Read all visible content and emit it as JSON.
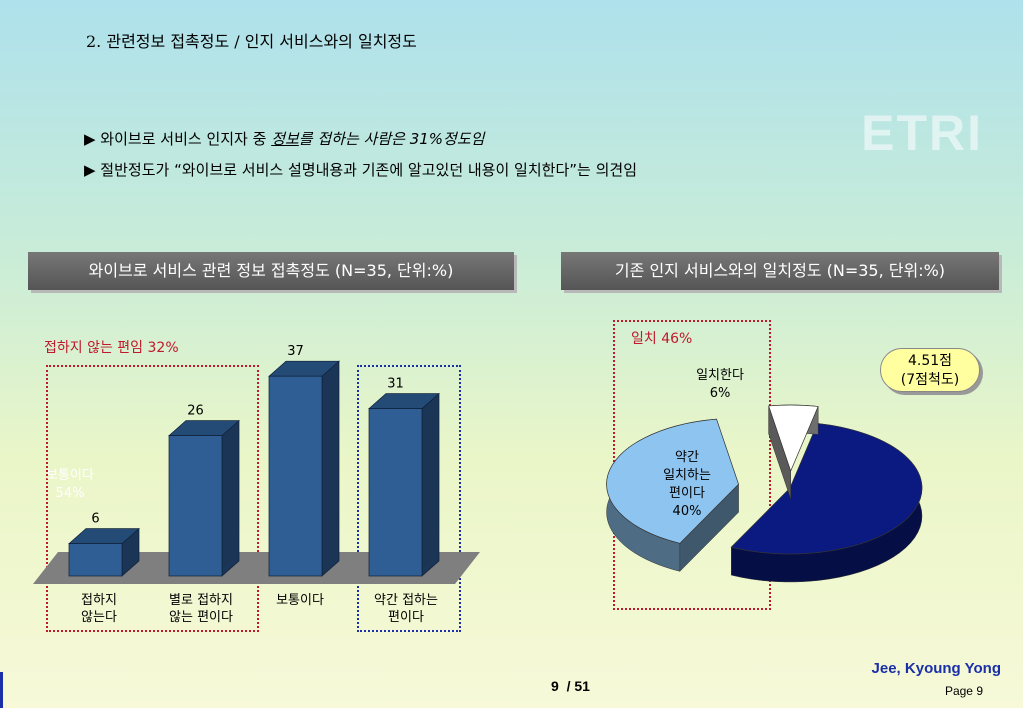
{
  "slide": {
    "title": "2. 관련정보 접촉정도 / 인지 서비스와의 일치정도",
    "watermark": "ETRI",
    "bullets": [
      {
        "pre": "▶ 와이브로 서비스 인지자 중 ",
        "emph_underline": "정보",
        "emph": "를 접하는 사람은 31%정도임"
      },
      {
        "text": "▶ 절반정도가 “와이브로 서비스 설명내용과 기존에 알고있던 내용이 일치한다”는 의견임"
      }
    ],
    "author": "Jee, Kyoung Yong",
    "page_label": "Page 9",
    "page_current": "9",
    "page_total": "/ 51"
  },
  "left_panel": {
    "header": "와이브로 서비스 관련 정보 접촉정도 (N=35, 단위:%)",
    "note": "접하지 않는 편임 32%",
    "labels": [
      [
        "접하지",
        "않는다"
      ],
      [
        "별로 접하지",
        "않는 편이다"
      ],
      [
        "보통이다"
      ],
      [
        "약간 접하는",
        "편이다"
      ]
    ]
  },
  "right_panel": {
    "header": "기존 인지 서비스와의 일치정도 (N=35, 단위:%)",
    "note": "일치 46%",
    "badge_line1": "4.51점",
    "badge_line2": "(7점척도)"
  },
  "chart_data": [
    {
      "type": "bar",
      "title": "와이브로 서비스 관련 정보 접촉정도 (N=35, 단위:%)",
      "categories": [
        "접하지 않는다",
        "별로 접하지 않는 편이다",
        "보통이다",
        "약간 접하는 편이다"
      ],
      "values": [
        6,
        26,
        37,
        31
      ],
      "ylim": [
        0,
        40
      ],
      "bar_color": "#2e5e93",
      "grid": false
    },
    {
      "type": "pie",
      "title": "기존 인지 서비스와의 일치정도 (N=35, 단위:%)",
      "slices": [
        {
          "label": "보통이다",
          "value": 54,
          "color": "#0b1a80"
        },
        {
          "label": "약간 일치하는 편이다",
          "label_lines": [
            "약간",
            "일치하는",
            "편이다"
          ],
          "value": 40,
          "color": "#8ec4f0"
        },
        {
          "label": "일치한다",
          "label_lines": [
            "일치한다"
          ],
          "value": 6,
          "color": "#ffffff"
        }
      ]
    }
  ]
}
